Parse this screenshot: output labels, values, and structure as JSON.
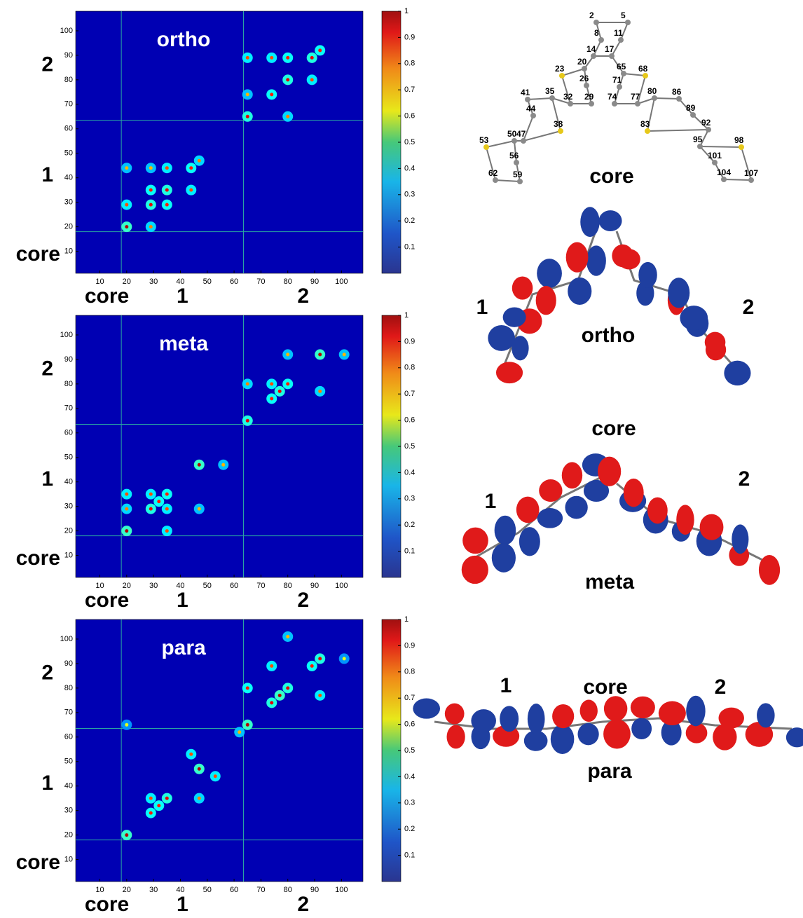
{
  "chart_data": [
    {
      "type": "heatmap",
      "title": "ortho",
      "region_labels": [
        "core",
        "1",
        "2"
      ],
      "dividers": [
        18,
        63.5
      ],
      "xlim": [
        1,
        108
      ],
      "ylim": [
        1,
        108
      ],
      "xticks": [
        10,
        20,
        30,
        40,
        50,
        60,
        70,
        80,
        90,
        100
      ],
      "yticks": [
        10,
        20,
        30,
        40,
        50,
        60,
        70,
        80,
        90,
        100
      ],
      "colorbar": {
        "lim": [
          0,
          1
        ],
        "ticks": [
          0.1,
          0.2,
          0.3,
          0.4,
          0.5,
          0.6,
          0.7,
          0.8,
          0.9,
          1
        ]
      },
      "x": [
        20,
        29,
        35,
        29,
        35,
        20,
        29,
        20,
        44,
        44,
        35,
        47,
        29,
        65,
        74,
        80,
        89,
        80,
        89,
        74,
        65,
        92,
        65,
        80
      ],
      "y": [
        20,
        29,
        35,
        35,
        29,
        29,
        20,
        44,
        44,
        35,
        44,
        47,
        44,
        65,
        74,
        80,
        89,
        89,
        80,
        89,
        89,
        92,
        74,
        65
      ],
      "values": [
        0.95,
        0.9,
        0.9,
        0.85,
        0.85,
        0.8,
        0.75,
        0.7,
        0.85,
        0.8,
        0.8,
        0.75,
        0.7,
        0.9,
        0.85,
        0.9,
        0.9,
        0.85,
        0.8,
        0.8,
        0.8,
        0.85,
        0.7,
        0.75
      ]
    },
    {
      "type": "heatmap",
      "title": "meta",
      "region_labels": [
        "core",
        "1",
        "2"
      ],
      "dividers": [
        18,
        63.5
      ],
      "xlim": [
        1,
        108
      ],
      "ylim": [
        1,
        108
      ],
      "xticks": [
        10,
        20,
        30,
        40,
        50,
        60,
        70,
        80,
        90,
        100
      ],
      "yticks": [
        10,
        20,
        30,
        40,
        50,
        60,
        70,
        80,
        90,
        100
      ],
      "colorbar": {
        "lim": [
          0,
          1
        ],
        "ticks": [
          0.1,
          0.2,
          0.3,
          0.4,
          0.5,
          0.6,
          0.7,
          0.8,
          0.9,
          1
        ]
      },
      "x": [
        20,
        29,
        35,
        29,
        35,
        32,
        20,
        35,
        47,
        47,
        56,
        20,
        65,
        74,
        80,
        77,
        92,
        92,
        80,
        101,
        74,
        65
      ],
      "y": [
        20,
        29,
        35,
        35,
        29,
        32,
        35,
        20,
        47,
        29,
        47,
        29,
        65,
        74,
        80,
        77,
        92,
        77,
        92,
        92,
        80,
        80
      ],
      "values": [
        0.95,
        0.9,
        0.85,
        0.8,
        0.8,
        0.85,
        0.8,
        0.8,
        0.95,
        0.7,
        0.7,
        0.75,
        0.9,
        0.85,
        0.85,
        0.9,
        0.95,
        0.75,
        0.7,
        0.7,
        0.8,
        0.75
      ]
    },
    {
      "type": "heatmap",
      "title": "para",
      "region_labels": [
        "core",
        "1",
        "2"
      ],
      "dividers": [
        18,
        63.5
      ],
      "xlim": [
        1,
        108
      ],
      "ylim": [
        1,
        108
      ],
      "xticks": [
        10,
        20,
        30,
        40,
        50,
        60,
        70,
        80,
        90,
        100
      ],
      "yticks": [
        10,
        20,
        30,
        40,
        50,
        60,
        70,
        80,
        90,
        100
      ],
      "colorbar": {
        "lim": [
          0,
          1
        ],
        "ticks": [
          0.1,
          0.2,
          0.3,
          0.4,
          0.5,
          0.6,
          0.7,
          0.8,
          0.9,
          1
        ]
      },
      "x": [
        20,
        29,
        35,
        32,
        47,
        44,
        53,
        29,
        47,
        62,
        65,
        74,
        77,
        80,
        92,
        89,
        74,
        92,
        80,
        101,
        65,
        20
      ],
      "y": [
        20,
        29,
        35,
        32,
        47,
        53,
        44,
        35,
        35,
        62,
        65,
        74,
        77,
        80,
        92,
        89,
        89,
        77,
        101,
        92,
        80,
        65
      ],
      "values": [
        0.95,
        0.85,
        0.9,
        0.85,
        0.95,
        0.8,
        0.8,
        0.8,
        0.75,
        0.7,
        0.95,
        0.9,
        0.95,
        0.9,
        0.9,
        0.85,
        0.8,
        0.8,
        0.7,
        0.6,
        0.85,
        0.6
      ]
    }
  ],
  "molecules": {
    "core": {
      "caption": "core",
      "atom_labels": [
        "2",
        "5",
        "8",
        "11",
        "14",
        "17",
        "20",
        "23",
        "26",
        "29",
        "32",
        "35",
        "38",
        "41",
        "44",
        "47",
        "50",
        "53",
        "56",
        "59",
        "62",
        "65",
        "68",
        "71",
        "74",
        "77",
        "80",
        "83",
        "86",
        "89",
        "92",
        "95",
        "98",
        "101",
        "104",
        "107"
      ]
    },
    "ortho": {
      "caption": "ortho",
      "left": "1",
      "right": "2"
    },
    "meta": {
      "caption": "meta",
      "top": "core",
      "left": "1",
      "right": "2"
    },
    "para": {
      "caption": "para",
      "top": "core",
      "left": "1",
      "right": "2"
    }
  }
}
